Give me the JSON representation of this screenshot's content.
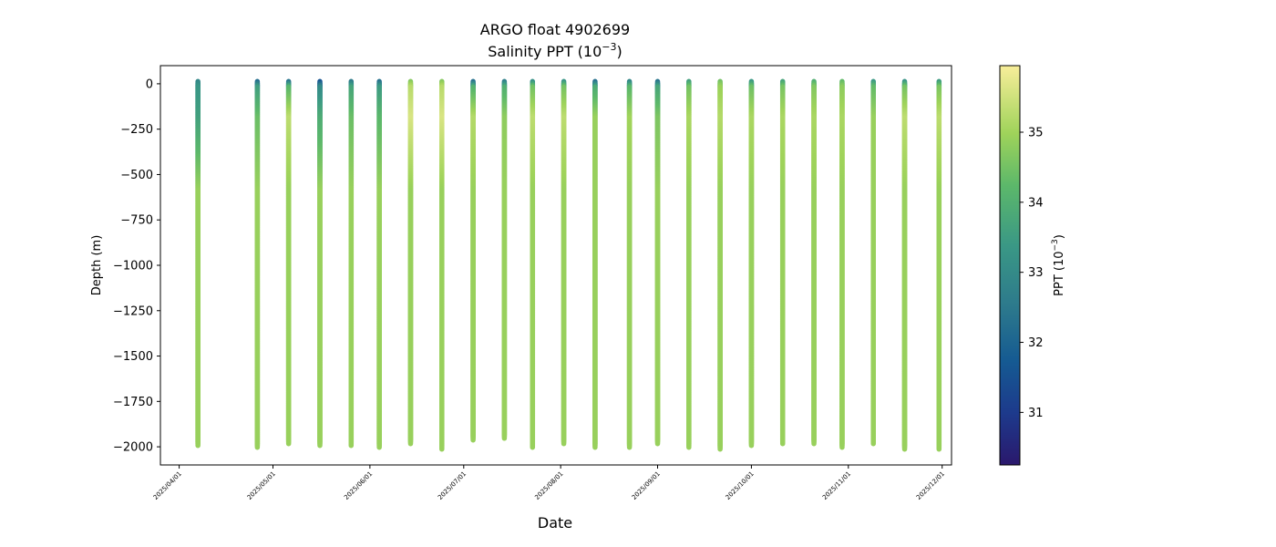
{
  "chart_data": {
    "type": "scatter",
    "title_line1": "ARGO float 4902699",
    "title_line2": "Salinity PPT (10",
    "title_line2_exp": "−3",
    "title_line2_end": ")",
    "xlabel": "Date",
    "ylabel": "Depth (m)",
    "colorbar_label_prefix": "PPT (10",
    "colorbar_label_exp": "−3",
    "colorbar_label_suffix": ")",
    "xlim": [
      "2025-03-26",
      "2025-12-04"
    ],
    "ylim": [
      -2100,
      100
    ],
    "x_ticks": [
      {
        "date": "2025-04-01",
        "label": "2025/04/01"
      },
      {
        "date": "2025-05-01",
        "label": "2025/05/01"
      },
      {
        "date": "2025-06-01",
        "label": "2025/06/01"
      },
      {
        "date": "2025-07-01",
        "label": "2025/07/01"
      },
      {
        "date": "2025-08-01",
        "label": "2025/08/01"
      },
      {
        "date": "2025-09-01",
        "label": "2025/09/01"
      },
      {
        "date": "2025-10-01",
        "label": "2025/10/01"
      },
      {
        "date": "2025-11-01",
        "label": "2025/11/01"
      },
      {
        "date": "2025-12-01",
        "label": "2025/12/01"
      }
    ],
    "y_ticks": [
      0,
      -250,
      -500,
      -750,
      -1000,
      -1250,
      -1500,
      -1750,
      -2000
    ],
    "y_tick_labels": [
      "0",
      "−250",
      "−500",
      "−750",
      "−1000",
      "−1250",
      "−1500",
      "−1750",
      "−2000"
    ],
    "colorbar_range": [
      30.25,
      35.95
    ],
    "colorbar_ticks": [
      31,
      32,
      33,
      34,
      35
    ],
    "colormap": "haline",
    "profiles": [
      {
        "date": "2025-04-07",
        "max_depth": -1985,
        "surface": 32.9,
        "mixed": 33.6,
        "deep": 34.9
      },
      {
        "date": "2025-04-26",
        "max_depth": -1990,
        "surface": 32.2,
        "mixed": 34.4,
        "deep": 34.9
      },
      {
        "date": "2025-05-06",
        "max_depth": -1975,
        "surface": 32.4,
        "mixed": 35.3,
        "deep": 34.9
      },
      {
        "date": "2025-05-16",
        "max_depth": -1980,
        "surface": 31.6,
        "mixed": 33.9,
        "deep": 34.9
      },
      {
        "date": "2025-05-26",
        "max_depth": -1980,
        "surface": 32.6,
        "mixed": 34.4,
        "deep": 34.9
      },
      {
        "date": "2025-06-04",
        "max_depth": -1990,
        "surface": 32.3,
        "mixed": 34.2,
        "deep": 34.9
      },
      {
        "date": "2025-06-14",
        "max_depth": -1970,
        "surface": 34.7,
        "mixed": 35.6,
        "deep": 34.9
      },
      {
        "date": "2025-06-24",
        "max_depth": -2005,
        "surface": 34.7,
        "mixed": 35.6,
        "deep": 34.9
      },
      {
        "date": "2025-07-04",
        "max_depth": -1950,
        "surface": 32.3,
        "mixed": 35.2,
        "deep": 34.9
      },
      {
        "date": "2025-07-14",
        "max_depth": -1945,
        "surface": 32.7,
        "mixed": 34.8,
        "deep": 34.9
      },
      {
        "date": "2025-07-23",
        "max_depth": -1990,
        "surface": 33.2,
        "mixed": 35.3,
        "deep": 34.9
      },
      {
        "date": "2025-08-02",
        "max_depth": -1975,
        "surface": 33.3,
        "mixed": 35.3,
        "deep": 34.9
      },
      {
        "date": "2025-08-12",
        "max_depth": -1990,
        "surface": 32.3,
        "mixed": 34.9,
        "deep": 34.9
      },
      {
        "date": "2025-08-23",
        "max_depth": -1990,
        "surface": 32.9,
        "mixed": 35.0,
        "deep": 34.9
      },
      {
        "date": "2025-09-01",
        "max_depth": -1970,
        "surface": 32.4,
        "mixed": 34.6,
        "deep": 34.9
      },
      {
        "date": "2025-09-11",
        "max_depth": -1990,
        "surface": 33.6,
        "mixed": 35.1,
        "deep": 34.9
      },
      {
        "date": "2025-09-21",
        "max_depth": -2000,
        "surface": 34.5,
        "mixed": 35.2,
        "deep": 34.9
      },
      {
        "date": "2025-10-01",
        "max_depth": -1980,
        "surface": 33.4,
        "mixed": 35.1,
        "deep": 34.9
      },
      {
        "date": "2025-10-11",
        "max_depth": -1970,
        "surface": 33.7,
        "mixed": 35.1,
        "deep": 34.9
      },
      {
        "date": "2025-10-21",
        "max_depth": -1970,
        "surface": 34.0,
        "mixed": 35.1,
        "deep": 34.9
      },
      {
        "date": "2025-10-30",
        "max_depth": -1990,
        "surface": 34.3,
        "mixed": 35.1,
        "deep": 34.9
      },
      {
        "date": "2025-11-09",
        "max_depth": -1970,
        "surface": 33.4,
        "mixed": 34.9,
        "deep": 34.9
      },
      {
        "date": "2025-11-19",
        "max_depth": -2000,
        "surface": 33.3,
        "mixed": 35.3,
        "deep": 34.9
      },
      {
        "date": "2025-11-30",
        "max_depth": -2000,
        "surface": 33.5,
        "mixed": 35.3,
        "deep": 34.9
      }
    ]
  }
}
